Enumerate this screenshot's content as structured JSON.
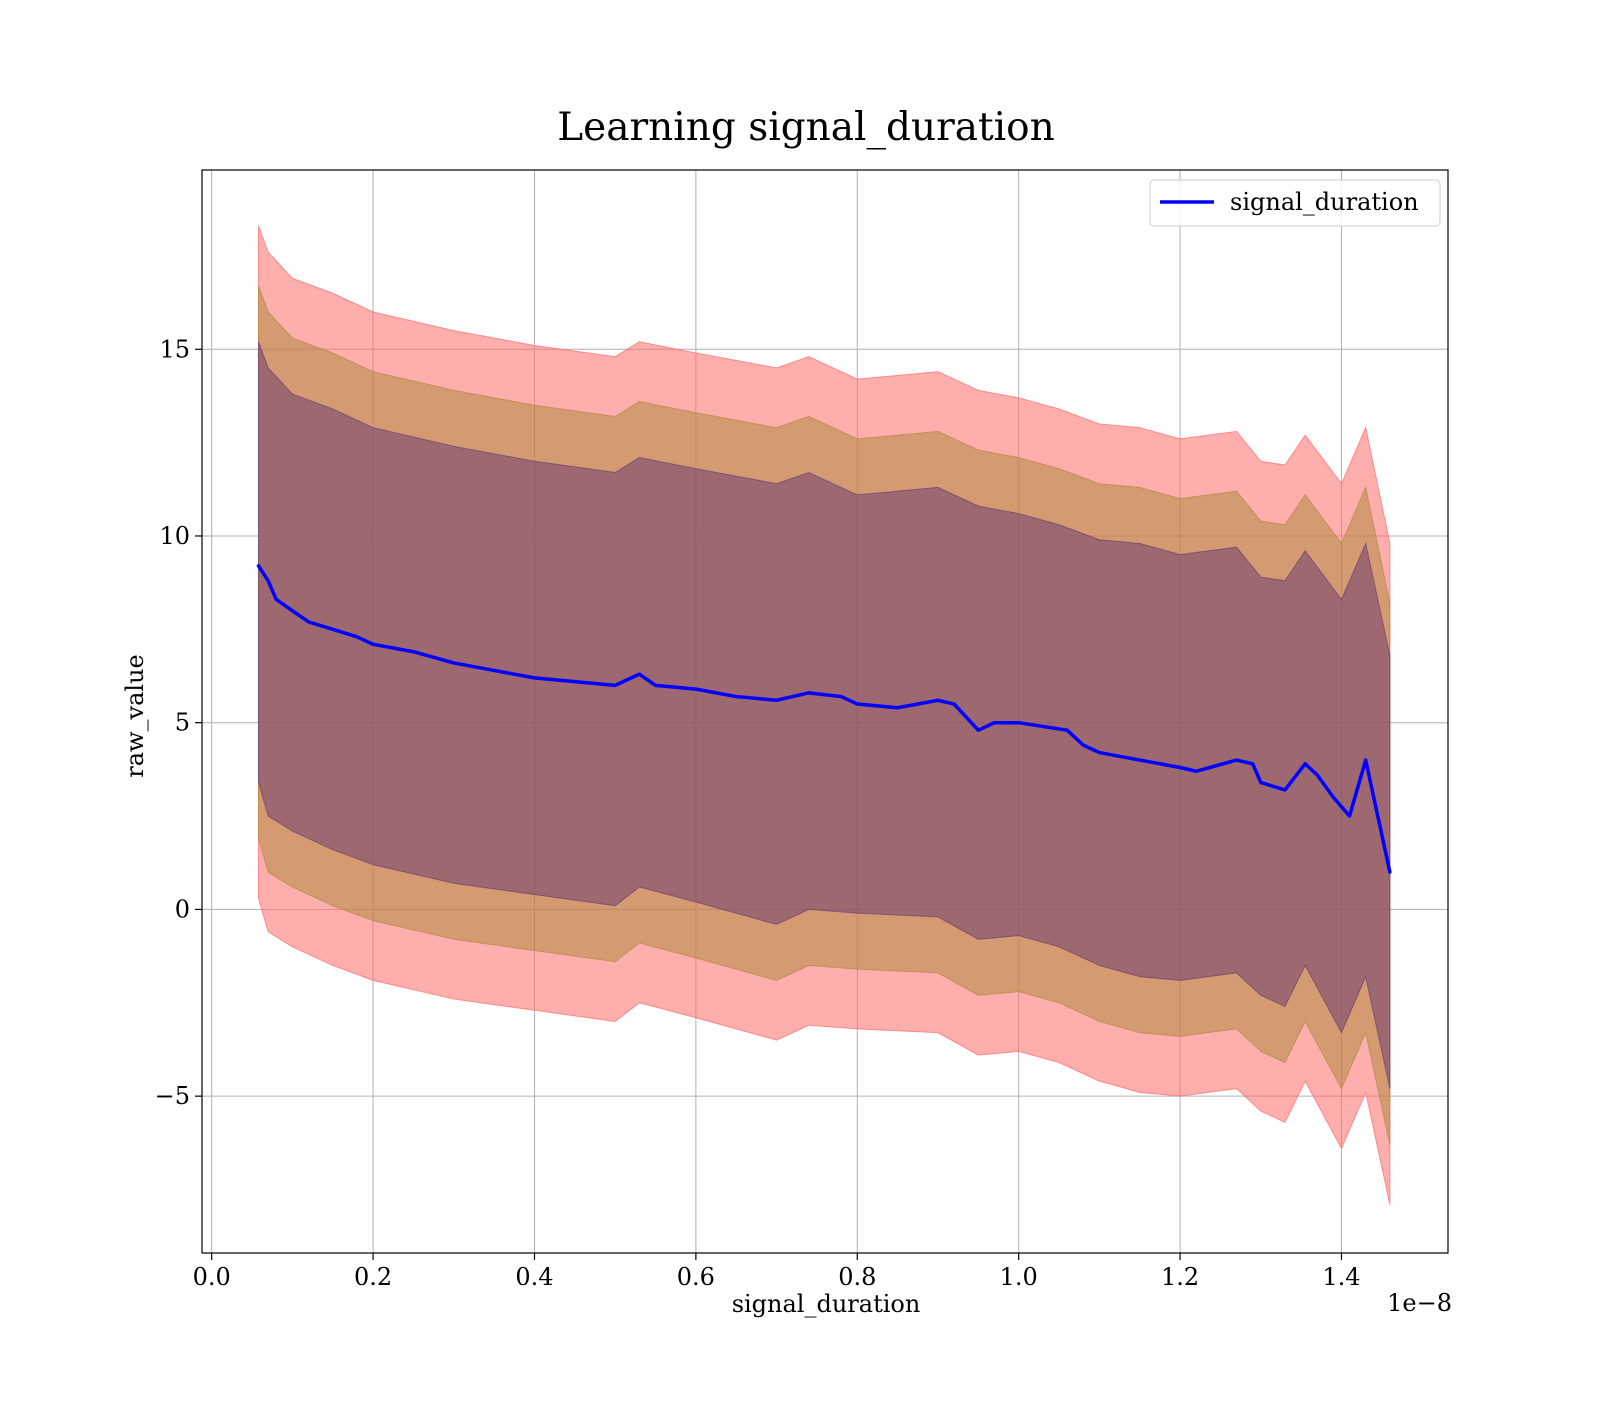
{
  "chart_data": {
    "type": "line",
    "title": "Learning signal_duration",
    "xlabel": "signal_duration",
    "ylabel": "raw_value",
    "x_offset_label": "1e−8",
    "xlim": [
      -0.012,
      1.532
    ],
    "ylim": [
      -9.2,
      19.8
    ],
    "x_ticks": [
      0.0,
      0.2,
      0.4,
      0.6,
      0.8,
      1.0,
      1.2,
      1.4
    ],
    "x_tick_labels": [
      "0.0",
      "0.2",
      "0.4",
      "0.6",
      "0.8",
      "1.0",
      "1.2",
      "1.4"
    ],
    "y_ticks": [
      -5,
      0,
      5,
      10,
      15
    ],
    "y_tick_labels": [
      "−5",
      "0",
      "5",
      "10",
      "15"
    ],
    "grid": true,
    "legend": {
      "position": "top-right",
      "entries": [
        "signal_duration"
      ]
    },
    "colors": {
      "line": "#0000ff",
      "band_outer": "#ff6b6b",
      "band_middle": "#b08a40",
      "band_inner": "#6f3f70"
    },
    "series": [
      {
        "name": "signal_duration",
        "x": [
          0.058,
          0.07,
          0.08,
          0.1,
          0.12,
          0.15,
          0.18,
          0.2,
          0.25,
          0.3,
          0.35,
          0.4,
          0.45,
          0.5,
          0.53,
          0.55,
          0.6,
          0.65,
          0.7,
          0.74,
          0.78,
          0.8,
          0.85,
          0.9,
          0.92,
          0.95,
          0.97,
          1.0,
          1.06,
          1.08,
          1.1,
          1.15,
          1.2,
          1.22,
          1.27,
          1.29,
          1.3,
          1.33,
          1.355,
          1.37,
          1.39,
          1.41,
          1.43,
          1.46
        ],
        "y": [
          9.2,
          8.8,
          8.3,
          8.0,
          7.7,
          7.5,
          7.3,
          7.1,
          6.9,
          6.6,
          6.4,
          6.2,
          6.1,
          6.0,
          6.3,
          6.0,
          5.9,
          5.7,
          5.6,
          5.8,
          5.7,
          5.5,
          5.4,
          5.6,
          5.5,
          4.8,
          5.0,
          5.0,
          4.8,
          4.4,
          4.2,
          4.0,
          3.8,
          3.7,
          4.0,
          3.9,
          3.4,
          3.2,
          3.9,
          3.6,
          3.0,
          2.5,
          4.0,
          1.0
        ]
      }
    ],
    "bands": [
      {
        "x": [
          0.058,
          0.07,
          0.1,
          0.15,
          0.2,
          0.3,
          0.4,
          0.5,
          0.53,
          0.6,
          0.7,
          0.74,
          0.8,
          0.9,
          0.95,
          1.0,
          1.05,
          1.1,
          1.15,
          1.2,
          1.27,
          1.3,
          1.33,
          1.355,
          1.4,
          1.43,
          1.46
        ],
        "upper": [
          18.3,
          17.6,
          16.9,
          16.5,
          16.0,
          15.5,
          15.1,
          14.8,
          15.2,
          14.9,
          14.5,
          14.8,
          14.2,
          14.4,
          13.9,
          13.7,
          13.4,
          13.0,
          12.9,
          12.6,
          12.8,
          12.0,
          11.9,
          12.7,
          11.4,
          12.9,
          9.8
        ],
        "lower": [
          0.3,
          -0.6,
          -1.0,
          -1.5,
          -1.9,
          -2.4,
          -2.7,
          -3.0,
          -2.5,
          -2.9,
          -3.5,
          -3.1,
          -3.2,
          -3.3,
          -3.9,
          -3.8,
          -4.1,
          -4.6,
          -4.9,
          -5.0,
          -4.8,
          -5.4,
          -5.7,
          -4.6,
          -6.4,
          -4.9,
          -7.9
        ]
      },
      {
        "x": [
          0.058,
          0.07,
          0.1,
          0.15,
          0.2,
          0.3,
          0.4,
          0.5,
          0.53,
          0.6,
          0.7,
          0.74,
          0.8,
          0.9,
          0.95,
          1.0,
          1.05,
          1.1,
          1.15,
          1.2,
          1.27,
          1.3,
          1.33,
          1.355,
          1.4,
          1.43,
          1.46
        ],
        "upper": [
          16.7,
          16.0,
          15.3,
          14.9,
          14.4,
          13.9,
          13.5,
          13.2,
          13.6,
          13.3,
          12.9,
          13.2,
          12.6,
          12.8,
          12.3,
          12.1,
          11.8,
          11.4,
          11.3,
          11.0,
          11.2,
          10.4,
          10.3,
          11.1,
          9.8,
          11.3,
          8.2
        ],
        "lower": [
          1.9,
          1.0,
          0.6,
          0.1,
          -0.3,
          -0.8,
          -1.1,
          -1.4,
          -0.9,
          -1.3,
          -1.9,
          -1.5,
          -1.6,
          -1.7,
          -2.3,
          -2.2,
          -2.5,
          -3.0,
          -3.3,
          -3.4,
          -3.2,
          -3.8,
          -4.1,
          -3.0,
          -4.8,
          -3.3,
          -6.3
        ]
      },
      {
        "x": [
          0.058,
          0.07,
          0.1,
          0.15,
          0.2,
          0.3,
          0.4,
          0.5,
          0.53,
          0.6,
          0.7,
          0.74,
          0.8,
          0.9,
          0.95,
          1.0,
          1.05,
          1.1,
          1.15,
          1.2,
          1.27,
          1.3,
          1.33,
          1.355,
          1.4,
          1.43,
          1.46
        ],
        "upper": [
          15.2,
          14.5,
          13.8,
          13.4,
          12.9,
          12.4,
          12.0,
          11.7,
          12.1,
          11.8,
          11.4,
          11.7,
          11.1,
          11.3,
          10.8,
          10.6,
          10.3,
          9.9,
          9.8,
          9.5,
          9.7,
          8.9,
          8.8,
          9.6,
          8.3,
          9.8,
          6.8
        ],
        "lower": [
          3.4,
          2.5,
          2.1,
          1.6,
          1.2,
          0.7,
          0.4,
          0.1,
          0.6,
          0.2,
          -0.4,
          0.0,
          -0.1,
          -0.2,
          -0.8,
          -0.7,
          -1.0,
          -1.5,
          -1.8,
          -1.9,
          -1.7,
          -2.3,
          -2.6,
          -1.5,
          -3.3,
          -1.8,
          -4.8
        ]
      }
    ]
  }
}
